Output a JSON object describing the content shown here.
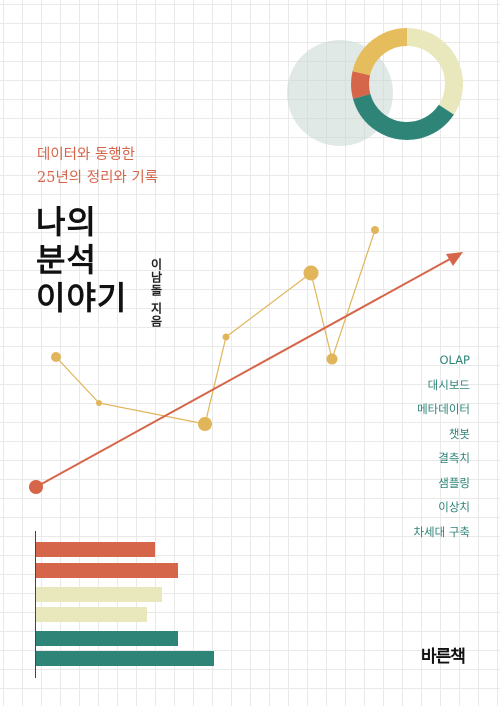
{
  "cover": {
    "subtitle": [
      "데이터와 동행한",
      "25년의 정리와 기록"
    ],
    "title": [
      "나의",
      "분석",
      "이야기"
    ],
    "author": "이남돌 지음",
    "keywords": [
      "OLAP",
      "대시보드",
      "메타데이터",
      "챗봇",
      "결측치",
      "샘플링",
      "이상치",
      "차세대 구축"
    ],
    "publisher": "바른책"
  },
  "colors": {
    "accent_red": "#d6664a",
    "accent_teal": "#2e8477",
    "accent_gold": "#e6bd5c",
    "accent_cream": "#e8e8bc",
    "ghost_circle": "#c9d7d4",
    "line_gold": "#e1b55a"
  },
  "icons": [
    "donut-chart-graphic",
    "trend-arrow-graphic",
    "line-chart-graphic",
    "bar-chart-graphic"
  ]
}
